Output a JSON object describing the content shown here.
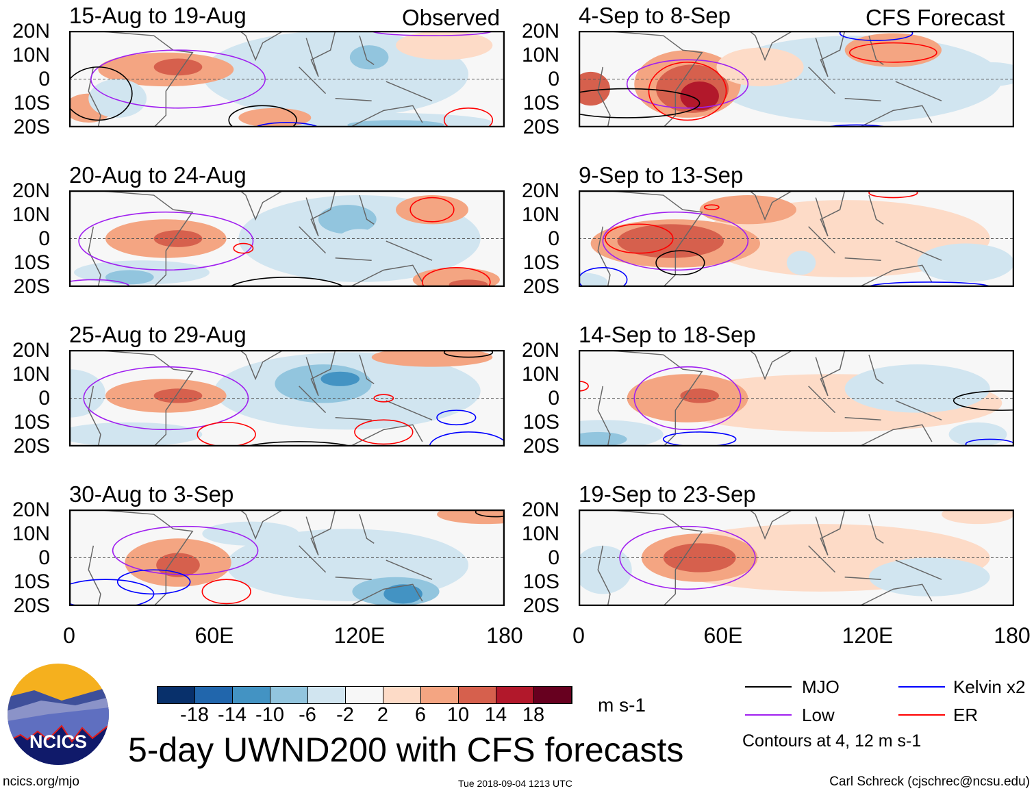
{
  "header": {
    "observed_label": "Observed",
    "forecast_label": "CFS Forecast"
  },
  "lat_labels": [
    "20N",
    "10N",
    "0",
    "10S",
    "20S"
  ],
  "lon_labels": [
    "0",
    "60E",
    "120E",
    "180"
  ],
  "panels": [
    {
      "title": "15-Aug to 19-Aug",
      "col": 0,
      "row": 0,
      "shading": [
        [
          110,
          2,
          55,
          18,
          -4
        ],
        [
          40,
          4,
          28,
          7,
          6
        ],
        [
          45,
          5,
          10,
          3.5,
          10
        ],
        [
          118,
          6,
          18,
          12,
          -6
        ],
        [
          124,
          9,
          8,
          5,
          -10
        ],
        [
          130,
          -18,
          45,
          4,
          -6
        ],
        [
          135,
          -19,
          20,
          2,
          -10
        ],
        [
          155,
          14,
          20,
          6,
          4
        ],
        [
          8,
          -12,
          10,
          6,
          6
        ],
        [
          85,
          -16,
          15,
          4,
          6
        ],
        [
          20,
          -8,
          12,
          8,
          -4
        ]
      ],
      "contours": [
        [
          45,
          0,
          36,
          12,
          "Low"
        ],
        [
          12,
          -6,
          14,
          11,
          "MJO"
        ],
        [
          80,
          -17,
          14,
          6,
          "MJO"
        ],
        [
          165,
          -17,
          10,
          5,
          "ER"
        ],
        [
          90,
          -21,
          14,
          3,
          "Kelvin x2"
        ],
        [
          150,
          20,
          25,
          2,
          "Low"
        ]
      ]
    },
    {
      "title": "20-Aug to 24-Aug",
      "col": 0,
      "row": 1,
      "shading": [
        [
          120,
          0,
          50,
          18,
          -3
        ],
        [
          40,
          0,
          25,
          8,
          6
        ],
        [
          45,
          0,
          10,
          3.5,
          10
        ],
        [
          115,
          8,
          12,
          6,
          -8
        ],
        [
          120,
          -2,
          10,
          6,
          -6
        ],
        [
          30,
          -14,
          28,
          5,
          -6
        ],
        [
          25,
          -16,
          10,
          3,
          -10
        ],
        [
          150,
          12,
          15,
          6,
          6
        ],
        [
          160,
          -17,
          18,
          5,
          6
        ],
        [
          165,
          -19,
          8,
          2,
          10
        ]
      ],
      "contours": [
        [
          40,
          -1,
          36,
          12,
          "Low"
        ],
        [
          150,
          12,
          9,
          5,
          "ER"
        ],
        [
          72,
          -4,
          4,
          2,
          "ER"
        ],
        [
          90,
          -22,
          25,
          6,
          "MJO"
        ],
        [
          160,
          -18,
          14,
          6,
          "ER"
        ],
        [
          10,
          -20,
          15,
          3,
          "Low"
        ]
      ]
    },
    {
      "title": "25-Aug to 29-Aug",
      "col": 0,
      "row": 2,
      "shading": [
        [
          115,
          3,
          55,
          16,
          -4
        ],
        [
          40,
          1,
          25,
          7,
          6
        ],
        [
          45,
          1,
          10,
          3,
          10
        ],
        [
          105,
          6,
          20,
          8,
          -8
        ],
        [
          112,
          8,
          8,
          3,
          -12
        ],
        [
          25,
          -15,
          30,
          5,
          -6
        ],
        [
          150,
          17,
          25,
          4,
          6
        ],
        [
          0,
          2,
          15,
          10,
          -4
        ]
      ],
      "contours": [
        [
          40,
          0,
          34,
          13,
          "Low"
        ],
        [
          130,
          -14,
          12,
          5,
          "ER"
        ],
        [
          65,
          -15,
          12,
          5,
          "ER"
        ],
        [
          160,
          -8,
          8,
          3,
          "Kelvin x2"
        ],
        [
          165,
          -20,
          16,
          6,
          "Kelvin x2"
        ],
        [
          95,
          -22,
          25,
          4,
          "MJO"
        ],
        [
          165,
          19,
          10,
          2,
          "MJO"
        ],
        [
          130,
          0,
          4,
          1.5,
          "ER"
        ]
      ]
    },
    {
      "title": "30-Aug to 3-Sep",
      "col": 0,
      "row": 3,
      "shading": [
        [
          115,
          -3,
          50,
          15,
          -4
        ],
        [
          45,
          -2,
          22,
          10,
          6
        ],
        [
          45,
          -3,
          9,
          5,
          10
        ],
        [
          75,
          10,
          20,
          5,
          -4
        ],
        [
          135,
          -14,
          18,
          6,
          -8
        ],
        [
          138,
          -15,
          8,
          4,
          -12
        ],
        [
          172,
          18,
          20,
          4,
          6
        ]
      ],
      "contours": [
        [
          48,
          3,
          30,
          10,
          "Low"
        ],
        [
          35,
          -10,
          15,
          5,
          "Kelvin x2"
        ],
        [
          15,
          -15,
          20,
          6,
          "Kelvin x2"
        ],
        [
          65,
          -14,
          10,
          5,
          "ER"
        ],
        [
          176,
          19,
          8,
          2,
          "MJO"
        ]
      ]
    },
    {
      "title": "4-Sep to 8-Sep",
      "col": 1,
      "row": 0,
      "shading": [
        [
          115,
          0,
          60,
          18,
          -3
        ],
        [
          45,
          -2,
          22,
          14,
          6
        ],
        [
          47,
          -4,
          15,
          10,
          10
        ],
        [
          50,
          -7,
          8,
          6,
          14
        ],
        [
          170,
          2,
          15,
          5,
          -6
        ],
        [
          5,
          -4,
          8,
          7,
          10
        ],
        [
          75,
          5,
          18,
          8,
          4
        ],
        [
          130,
          12,
          20,
          7,
          6
        ]
      ],
      "contours": [
        [
          45,
          -2,
          25,
          10,
          "Low"
        ],
        [
          45,
          -5,
          16,
          12,
          "ER"
        ],
        [
          130,
          11,
          18,
          4,
          "ER"
        ],
        [
          20,
          -10,
          30,
          6,
          "MJO"
        ],
        [
          115,
          -21,
          15,
          2,
          "Kelvin x2"
        ],
        [
          123,
          19,
          15,
          3,
          "Kelvin x2"
        ]
      ]
    },
    {
      "title": "9-Sep to 13-Sep",
      "col": 1,
      "row": 1,
      "shading": [
        [
          110,
          0,
          60,
          16,
          3
        ],
        [
          40,
          -2,
          35,
          10,
          6
        ],
        [
          38,
          -1,
          22,
          7,
          10
        ],
        [
          70,
          12,
          20,
          6,
          6
        ],
        [
          92,
          -10,
          6,
          5,
          -4
        ],
        [
          160,
          -10,
          20,
          8,
          -3
        ],
        [
          0,
          -18,
          12,
          4,
          -6
        ]
      ],
      "contours": [
        [
          40,
          -1,
          30,
          12,
          "Low"
        ],
        [
          25,
          0,
          14,
          6,
          "ER"
        ],
        [
          42,
          -10,
          10,
          5,
          "MJO"
        ],
        [
          10,
          -17,
          10,
          5,
          "Kelvin x2"
        ],
        [
          145,
          -20,
          25,
          2,
          "Kelvin x2"
        ],
        [
          130,
          19,
          10,
          2,
          "ER"
        ],
        [
          55,
          13,
          3,
          1,
          "ER"
        ]
      ]
    },
    {
      "title": "14-Sep to 18-Sep",
      "col": 1,
      "row": 2,
      "shading": [
        [
          105,
          -2,
          70,
          12,
          3
        ],
        [
          45,
          0,
          25,
          10,
          6
        ],
        [
          50,
          1,
          8,
          3,
          10
        ],
        [
          10,
          -15,
          25,
          6,
          -6
        ],
        [
          8,
          -17,
          12,
          3,
          -10
        ],
        [
          140,
          4,
          30,
          10,
          -3
        ],
        [
          165,
          -15,
          12,
          5,
          -4
        ]
      ],
      "contours": [
        [
          45,
          0,
          22,
          13,
          "Low"
        ],
        [
          175,
          -1,
          20,
          4,
          "MJO"
        ],
        [
          50,
          -17,
          15,
          3,
          "Kelvin x2"
        ],
        [
          170,
          -19,
          10,
          2,
          "Kelvin x2"
        ],
        [
          0,
          5,
          4,
          2,
          "ER"
        ]
      ]
    },
    {
      "title": "19-Sep to 23-Sep",
      "col": 1,
      "row": 3,
      "shading": [
        [
          100,
          0,
          70,
          14,
          3
        ],
        [
          50,
          0,
          24,
          10,
          6
        ],
        [
          50,
          0,
          15,
          6,
          10
        ],
        [
          145,
          -8,
          25,
          8,
          -4
        ],
        [
          10,
          -5,
          12,
          10,
          -3
        ],
        [
          165,
          18,
          15,
          4,
          4
        ]
      ],
      "contours": [
        [
          45,
          0,
          28,
          13,
          "Low"
        ]
      ]
    }
  ],
  "colorbar": {
    "colors": [
      "#08306b",
      "#2166ac",
      "#4393c3",
      "#92c5de",
      "#d1e5f0",
      "#f7f7f7",
      "#fddbc7",
      "#f4a582",
      "#d6604d",
      "#b2182b",
      "#67001f"
    ],
    "labels": [
      "-18",
      "-14",
      "-10",
      "-6",
      "-2",
      "2",
      "6",
      "10",
      "14",
      "18"
    ],
    "units": "m s-1"
  },
  "legend": {
    "items": [
      {
        "label": "MJO",
        "color": "#000000"
      },
      {
        "label": "Kelvin x2",
        "color": "#0000ff"
      },
      {
        "label": "Low",
        "color": "#a020f0"
      },
      {
        "label": "ER",
        "color": "#ff0000"
      }
    ],
    "note": "Contours at 4, 12 m s-1"
  },
  "footer": {
    "title": "5-day UWND200 with CFS forecasts",
    "site": "ncics.org/mjo",
    "timestamp": "Tue 2018-09-04 1213 UTC",
    "credit": "Carl Schreck (cjschrec@ncsu.edu)",
    "logo_text": "NCICS"
  }
}
